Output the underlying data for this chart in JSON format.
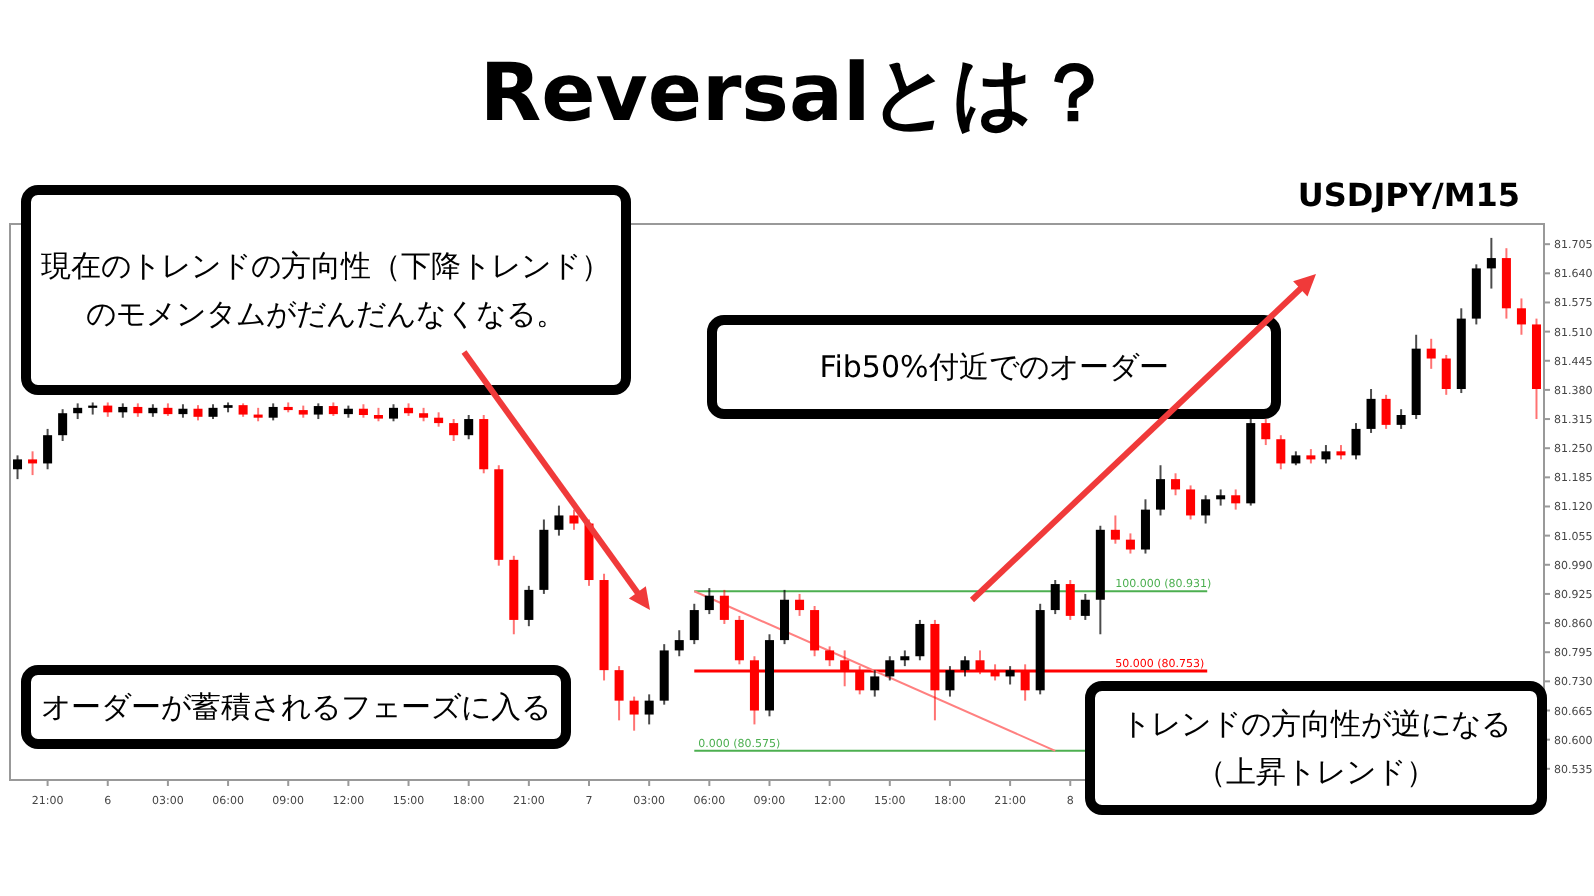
{
  "chart_data": {
    "type": "candlestick",
    "title": "Reversalとは？",
    "subtitle": "USDJPY/M15",
    "annotations": [
      "現在のトレンドの方向性（下降トレンド）のモメンタムがだんだんなくなる。",
      "Fib50%付近でのオーダー",
      "オーダーが蓄積されるフェーズに入る",
      "トレンドの方向性が逆になる（上昇トレンド）"
    ],
    "categories": [
      null,
      null,
      "21:00",
      null,
      null,
      null,
      "6",
      null,
      null,
      null,
      "03:00",
      null,
      null,
      null,
      "06:00",
      null,
      null,
      null,
      "09:00",
      null,
      null,
      null,
      "12:00",
      null,
      null,
      null,
      "15:00",
      null,
      null,
      null,
      "18:00",
      null,
      null,
      null,
      "21:00",
      null,
      null,
      null,
      "7",
      null,
      null,
      null,
      "03:00",
      null,
      null,
      null,
      "06:00",
      null,
      null,
      null,
      "09:00",
      null,
      null,
      null,
      "12:00",
      null,
      null,
      null,
      "15:00",
      null,
      null,
      null,
      "18:00",
      null,
      null,
      null,
      "21:00",
      null,
      null,
      null,
      "8",
      null,
      null,
      null,
      null,
      null,
      null,
      null,
      null,
      null,
      null,
      null,
      null,
      null,
      null,
      null,
      null,
      null,
      null,
      null,
      null,
      null,
      null,
      null,
      null,
      null,
      null,
      null,
      null,
      null,
      null,
      null
    ],
    "ohlc": [
      [
        81.203,
        81.234,
        81.181,
        81.225
      ],
      [
        81.225,
        81.243,
        81.19,
        81.216
      ],
      [
        81.216,
        81.293,
        81.203,
        81.279
      ],
      [
        81.279,
        81.337,
        81.266,
        81.328
      ],
      [
        81.328,
        81.35,
        81.315,
        81.34
      ],
      [
        81.34,
        81.352,
        81.325,
        81.345
      ],
      [
        81.345,
        81.352,
        81.32,
        81.33
      ],
      [
        81.33,
        81.35,
        81.318,
        81.342
      ],
      [
        81.342,
        81.35,
        81.32,
        81.328
      ],
      [
        81.328,
        81.348,
        81.32,
        81.34
      ],
      [
        81.34,
        81.35,
        81.322,
        81.326
      ],
      [
        81.326,
        81.348,
        81.318,
        81.338
      ],
      [
        81.338,
        81.346,
        81.312,
        81.32
      ],
      [
        81.32,
        81.348,
        81.315,
        81.34
      ],
      [
        81.34,
        81.352,
        81.33,
        81.346
      ],
      [
        81.346,
        81.35,
        81.32,
        81.325
      ],
      [
        81.325,
        81.34,
        81.31,
        81.318
      ],
      [
        81.318,
        81.35,
        81.312,
        81.342
      ],
      [
        81.342,
        81.352,
        81.33,
        81.335
      ],
      [
        81.335,
        81.345,
        81.318,
        81.325
      ],
      [
        81.325,
        81.35,
        81.315,
        81.344
      ],
      [
        81.344,
        81.352,
        81.322,
        81.326
      ],
      [
        81.326,
        81.345,
        81.318,
        81.338
      ],
      [
        81.338,
        81.348,
        81.318,
        81.324
      ],
      [
        81.324,
        81.34,
        81.31,
        81.316
      ],
      [
        81.316,
        81.348,
        81.31,
        81.34
      ],
      [
        81.34,
        81.35,
        81.322,
        81.328
      ],
      [
        81.328,
        81.34,
        81.31,
        81.318
      ],
      [
        81.318,
        81.33,
        81.298,
        81.306
      ],
      [
        81.306,
        81.315,
        81.266,
        81.279
      ],
      [
        81.279,
        81.324,
        81.27,
        81.315
      ],
      [
        81.315,
        81.324,
        81.194,
        81.203
      ],
      [
        81.203,
        81.212,
        80.988,
        81.001
      ],
      [
        81.001,
        81.01,
        80.835,
        80.867
      ],
      [
        80.867,
        80.943,
        80.853,
        80.934
      ],
      [
        80.934,
        81.091,
        80.925,
        81.068
      ],
      [
        81.068,
        81.122,
        81.055,
        81.1
      ],
      [
        81.1,
        81.113,
        81.068,
        81.082
      ],
      [
        81.082,
        81.091,
        80.943,
        80.956
      ],
      [
        80.956,
        80.97,
        80.732,
        80.755
      ],
      [
        80.755,
        80.764,
        80.643,
        80.687
      ],
      [
        80.687,
        80.696,
        80.62,
        80.656
      ],
      [
        80.656,
        80.701,
        80.634,
        80.687
      ],
      [
        80.687,
        80.813,
        80.678,
        80.799
      ],
      [
        80.799,
        80.844,
        80.786,
        80.822
      ],
      [
        80.822,
        80.903,
        80.813,
        80.889
      ],
      [
        80.889,
        80.938,
        80.88,
        80.921
      ],
      [
        80.921,
        80.934,
        80.858,
        80.867
      ],
      [
        80.867,
        80.876,
        80.768,
        80.777
      ],
      [
        80.777,
        80.786,
        80.634,
        80.665
      ],
      [
        80.665,
        80.835,
        80.652,
        80.822
      ],
      [
        80.822,
        80.934,
        80.813,
        80.912
      ],
      [
        80.912,
        80.925,
        80.876,
        80.889
      ],
      [
        80.889,
        80.898,
        80.786,
        80.799
      ],
      [
        80.799,
        80.808,
        80.764,
        80.777
      ],
      [
        80.777,
        80.799,
        80.719,
        80.755
      ],
      [
        80.755,
        80.764,
        80.701,
        80.71
      ],
      [
        80.71,
        80.755,
        80.696,
        80.741
      ],
      [
        80.741,
        80.786,
        80.732,
        80.777
      ],
      [
        80.777,
        80.799,
        80.764,
        80.786
      ],
      [
        80.786,
        80.867,
        80.777,
        80.858
      ],
      [
        80.858,
        80.867,
        80.643,
        80.71
      ],
      [
        80.71,
        80.764,
        80.696,
        80.755
      ],
      [
        80.755,
        80.786,
        80.741,
        80.777
      ],
      [
        80.777,
        80.799,
        80.746,
        80.755
      ],
      [
        80.755,
        80.768,
        80.732,
        80.741
      ],
      [
        80.741,
        80.764,
        80.723,
        80.755
      ],
      [
        80.755,
        80.768,
        80.687,
        80.71
      ],
      [
        80.71,
        80.903,
        80.701,
        80.889
      ],
      [
        80.889,
        80.956,
        80.88,
        80.947
      ],
      [
        80.947,
        80.956,
        80.867,
        80.876
      ],
      [
        80.876,
        80.925,
        80.867,
        80.912
      ],
      [
        80.912,
        81.077,
        80.835,
        81.068
      ],
      [
        81.068,
        81.1,
        81.037,
        81.046
      ],
      [
        81.046,
        81.06,
        81.015,
        81.024
      ],
      [
        81.024,
        81.136,
        81.015,
        81.113
      ],
      [
        81.113,
        81.212,
        81.1,
        81.181
      ],
      [
        81.181,
        81.194,
        81.145,
        81.158
      ],
      [
        81.158,
        81.167,
        81.091,
        81.1
      ],
      [
        81.1,
        81.145,
        81.082,
        81.136
      ],
      [
        81.136,
        81.158,
        81.122,
        81.145
      ],
      [
        81.145,
        81.158,
        81.113,
        81.127
      ],
      [
        81.127,
        81.33,
        81.122,
        81.306
      ],
      [
        81.306,
        81.315,
        81.257,
        81.27
      ],
      [
        81.27,
        81.279,
        81.203,
        81.216
      ],
      [
        81.216,
        81.243,
        81.212,
        81.234
      ],
      [
        81.234,
        81.248,
        81.216,
        81.225
      ],
      [
        81.225,
        81.257,
        81.216,
        81.243
      ],
      [
        81.243,
        81.257,
        81.225,
        81.234
      ],
      [
        81.234,
        81.306,
        81.225,
        81.293
      ],
      [
        81.293,
        81.382,
        81.284,
        81.36
      ],
      [
        81.36,
        81.369,
        81.293,
        81.302
      ],
      [
        81.302,
        81.337,
        81.293,
        81.324
      ],
      [
        81.324,
        81.503,
        81.315,
        81.472
      ],
      [
        81.472,
        81.494,
        81.427,
        81.45
      ],
      [
        81.45,
        81.458,
        81.369,
        81.382
      ],
      [
        81.382,
        81.562,
        81.373,
        81.539
      ],
      [
        81.539,
        81.66,
        81.526,
        81.651
      ],
      [
        81.651,
        81.719,
        81.606,
        81.674
      ],
      [
        81.674,
        81.696,
        81.539,
        81.562
      ],
      [
        81.562,
        81.584,
        81.503,
        81.526
      ],
      [
        81.526,
        81.539,
        81.315,
        81.382
      ]
    ],
    "colors": [
      "#000000",
      "#ff0000",
      "#000000",
      "#000000",
      "#000000",
      "#000000",
      "#ff0000",
      "#000000",
      "#ff0000",
      "#000000",
      "#ff0000",
      "#000000",
      "#ff0000",
      "#000000",
      "#000000",
      "#ff0000",
      "#ff0000",
      "#000000",
      "#ff0000",
      "#ff0000",
      "#000000",
      "#ff0000",
      "#000000",
      "#ff0000",
      "#ff0000",
      "#000000",
      "#ff0000",
      "#ff0000",
      "#ff0000",
      "#ff0000",
      "#000000",
      "#ff0000",
      "#ff0000",
      "#ff0000",
      "#000000",
      "#000000",
      "#000000",
      "#ff0000",
      "#ff0000",
      "#ff0000",
      "#ff0000",
      "#ff0000",
      "#000000",
      "#000000",
      "#000000",
      "#000000",
      "#000000",
      "#ff0000",
      "#ff0000",
      "#ff0000",
      "#000000",
      "#000000",
      "#ff0000",
      "#ff0000",
      "#ff0000",
      "#ff0000",
      "#ff0000",
      "#000000",
      "#000000",
      "#000000",
      "#000000",
      "#ff0000",
      "#000000",
      "#000000",
      "#ff0000",
      "#ff0000",
      "#000000",
      "#ff0000",
      "#000000",
      "#000000",
      "#ff0000",
      "#000000",
      "#000000",
      "#ff0000",
      "#ff0000",
      "#000000",
      "#000000",
      "#ff0000",
      "#ff0000",
      "#000000",
      "#000000",
      "#ff0000",
      "#000000",
      "#ff0000",
      "#ff0000",
      "#000000",
      "#ff0000",
      "#000000",
      "#ff0000",
      "#000000",
      "#000000",
      "#ff0000",
      "#000000",
      "#000000",
      "#ff0000",
      "#ff0000",
      "#000000",
      "#000000",
      "#000000",
      "#ff0000",
      "#ff0000",
      "#ff0000"
    ],
    "series": [
      {
        "type": "line",
        "color": "#ff8080",
        "values": [
          null,
          null,
          null,
          null,
          null,
          null,
          null,
          null,
          null,
          null,
          null,
          null,
          null,
          null,
          null,
          null,
          null,
          null,
          null,
          null,
          null,
          null,
          null,
          null,
          null,
          null,
          null,
          null,
          null,
          null,
          null,
          null,
          null,
          null,
          null,
          null,
          null,
          null,
          null,
          null,
          null,
          null,
          null,
          null,
          null,
          80.931,
          null,
          null,
          null,
          null,
          null,
          null,
          null,
          null,
          null,
          null,
          null,
          null,
          null,
          null,
          null,
          null,
          null,
          null,
          null,
          null,
          null,
          null,
          null,
          80.575,
          null,
          null,
          null,
          null,
          null,
          null,
          null,
          null,
          null,
          null,
          null,
          null,
          null,
          null,
          null,
          null,
          null,
          null,
          null,
          null,
          null,
          null,
          null,
          null,
          null,
          null,
          null,
          null,
          null,
          null,
          null,
          null
        ]
      }
    ],
    "ref_lines": [
      {
        "axis": "y",
        "value": 80.931,
        "label": "100.000 (80.931)",
        "color": "#4caf50"
      },
      {
        "axis": "y",
        "value": 80.753,
        "label": "50.000 (80.753)",
        "color": "#ff0000"
      },
      {
        "axis": "y",
        "value": 80.575,
        "label": "0.000 (80.575)",
        "color": "#4caf50"
      }
    ],
    "ylim": [
      80.51,
      81.75
    ],
    "yticks": [
      81.705,
      {
        "value": 81.64,
        "label": "81.640"
      },
      81.575,
      {
        "value": 81.51,
        "label": "81.510"
      },
      81.445,
      {
        "value": 81.38,
        "label": "81.380"
      },
      81.315,
      {
        "value": 81.25,
        "label": "81.250"
      },
      81.185,
      {
        "value": 81.12,
        "label": "81.120"
      },
      81.055,
      {
        "value": 80.99,
        "label": "80.990"
      },
      80.925,
      {
        "value": 80.86,
        "label": "80.860"
      },
      80.795,
      {
        "value": 80.73,
        "label": "80.730"
      },
      80.665,
      {
        "value": 80.6,
        "label": "80.600"
      },
      80.535
    ],
    "grid": false
  }
}
